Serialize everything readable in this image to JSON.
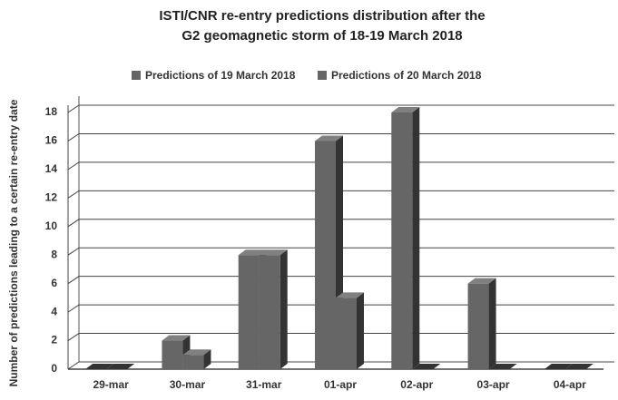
{
  "chart_data": {
    "type": "bar3d",
    "title": [
      "ISTI/CNR re-entry predictions distribution after the",
      "G2 geomagnetic storm of 18-19 March 2018"
    ],
    "y_label": "Number of predictions leading to a certain re-entry date",
    "categories": [
      "29-mar",
      "30-mar",
      "31-mar",
      "01-apr",
      "02-apr",
      "03-apr",
      "04-apr"
    ],
    "series": [
      {
        "name": "Predictions of 19 March 2018",
        "color": "#666666",
        "values": [
          0,
          2,
          8,
          16,
          18,
          6,
          0
        ]
      },
      {
        "name": "Predictions of 20 March 2018",
        "color": "#666666",
        "values": [
          0,
          1,
          8,
          5,
          0,
          0,
          0
        ]
      }
    ],
    "ylim": [
      0,
      18
    ],
    "yticks": [
      0,
      2,
      4,
      6,
      8,
      10,
      12,
      14,
      16,
      18
    ],
    "grid": true,
    "legend": "top"
  }
}
